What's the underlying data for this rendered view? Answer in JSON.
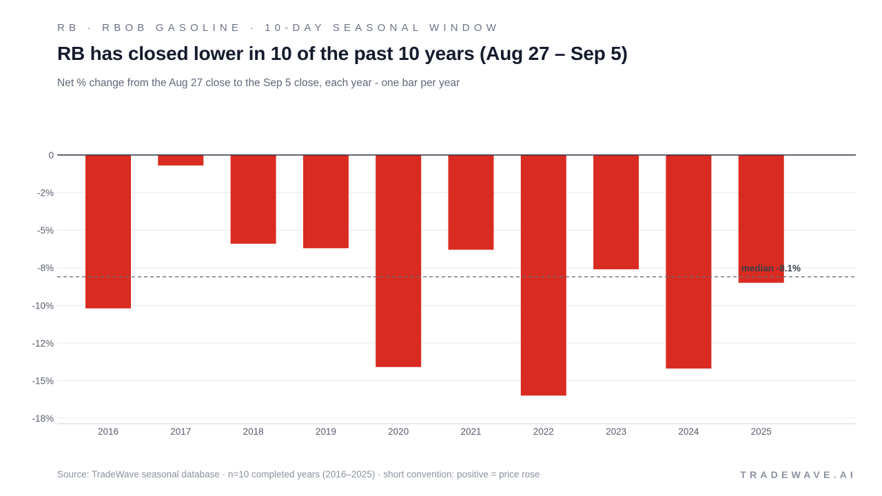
{
  "header": {
    "eyebrow": "RB · RBOB GASOLINE · 10-DAY SEASONAL WINDOW",
    "title": "RB has closed lower in 10 of the past 10 years (Aug 27 – Sep 5)",
    "subtitle": "Net % change from the Aug 27 close to the Sep 5 close, each year - one bar per year"
  },
  "footer": {
    "source": "Source: TradeWave seasonal database · n=10 completed years (2016–2025) · short convention: positive = price rose",
    "brand": "TRADEWAVE.AI"
  },
  "colors": {
    "bar": "#d92b21",
    "zero_line": "#2b3040",
    "grid": "#e6e8ec",
    "median_line": "#6b6f78",
    "tick_text": "#555b68"
  },
  "chart_data": {
    "type": "bar",
    "title": "RB has closed lower in 10 of the past 10 years (Aug 27 – Sep 5)",
    "xlabel": "",
    "ylabel": "",
    "categories": [
      "2016",
      "2017",
      "2018",
      "2019",
      "2020",
      "2021",
      "2022",
      "2023",
      "2024",
      "2025"
    ],
    "values": [
      -10.2,
      -0.7,
      -5.9,
      -6.2,
      -14.1,
      -6.3,
      -16.0,
      -7.6,
      -14.2,
      -8.5
    ],
    "ylim": [
      -17.5,
      0
    ],
    "y_ticks": [
      0,
      -2.5,
      -5,
      -7.5,
      -10,
      -12.5,
      -15,
      -17.5
    ],
    "y_tick_labels": [
      "0",
      "-2%",
      "-5%",
      "-8%",
      "-10%",
      "-12%",
      "-15%",
      "-18%"
    ],
    "grid": true,
    "median": {
      "value": -8.1,
      "label": "median -8.1%"
    }
  }
}
